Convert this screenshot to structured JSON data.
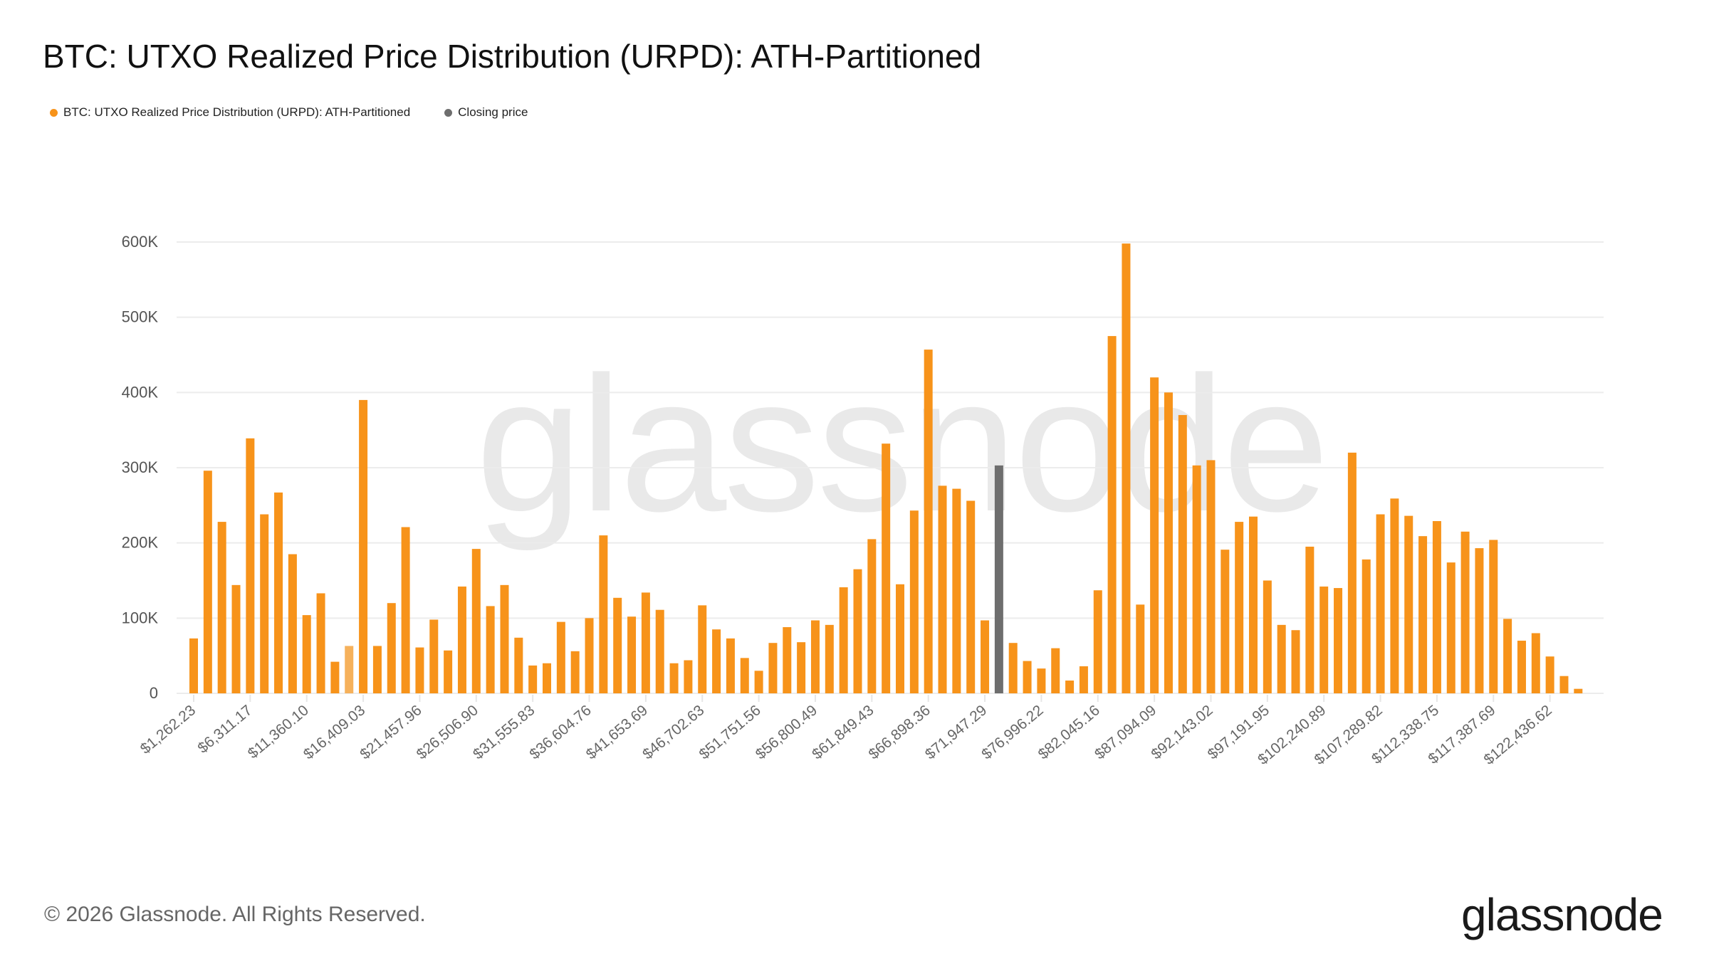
{
  "title": "BTC: UTXO Realized Price Distribution (URPD): ATH-Partitioned",
  "legend": [
    {
      "label": "BTC: UTXO Realized Price Distribution (URPD): ATH-Partitioned",
      "color": "#f7931a"
    },
    {
      "label": "Closing price",
      "color": "#6e6e6e"
    }
  ],
  "watermark": "glassnode",
  "footer": {
    "copyright": "© 2026 Glassnode. All Rights Reserved.",
    "logo": "glassnode"
  },
  "chart_data": {
    "type": "bar",
    "title": "BTC: UTXO Realized Price Distribution (URPD): ATH-Partitioned",
    "xlabel": "",
    "ylabel": "",
    "ylim": [
      0,
      600000
    ],
    "y_ticks": [
      0,
      100000,
      200000,
      300000,
      400000,
      500000,
      600000
    ],
    "y_tick_labels": [
      "0",
      "100K",
      "200K",
      "300K",
      "400K",
      "500K",
      "600K"
    ],
    "grid": true,
    "legend_position": "top-left",
    "x_tick_every": 4,
    "x_tick_labels": [
      "$1,262.23",
      "$6,311.17",
      "$11,360.10",
      "$16,409.03",
      "$21,457.96",
      "$26,506.90",
      "$31,555.83",
      "$36,604.76",
      "$41,653.69",
      "$46,702.63",
      "$51,751.56",
      "$56,800.49",
      "$61,849.43",
      "$66,898.36",
      "$71,947.29",
      "$76,996.22",
      "$82,045.16",
      "$87,094.09",
      "$92,143.02",
      "$97,191.95",
      "$102,240.89",
      "$107,289.82",
      "$112,338.75",
      "$117,387.69",
      "$122,436.62"
    ],
    "colors": {
      "default": "#f7931a",
      "highlighted": "#f6b15b",
      "closing_price": "#6e6e6e"
    },
    "closing_price_bin_index": 57,
    "highlighted_bin_index": 11,
    "series": [
      {
        "name": "BTC: UTXO Realized Price Distribution (URPD): ATH-Partitioned",
        "values": [
          73000,
          296000,
          228000,
          144000,
          339000,
          238000,
          267000,
          185000,
          104000,
          133000,
          42000,
          63000,
          390000,
          63000,
          120000,
          221000,
          61000,
          98000,
          57000,
          142000,
          192000,
          116000,
          144000,
          74000,
          37000,
          40000,
          95000,
          56000,
          100000,
          210000,
          127000,
          102000,
          134000,
          111000,
          40000,
          44000,
          117000,
          85000,
          73000,
          47000,
          30000,
          67000,
          88000,
          68000,
          97000,
          91000,
          141000,
          165000,
          205000,
          332000,
          145000,
          243000,
          457000,
          276000,
          272000,
          256000,
          97000,
          303000,
          67000,
          43000,
          33000,
          60000,
          17000,
          36000,
          137000,
          475000,
          598000,
          118000,
          420000,
          400000,
          370000,
          303000,
          310000,
          191000,
          228000,
          235000,
          150000,
          91000,
          84000,
          195000,
          142000,
          140000,
          320000,
          178000,
          238000,
          259000,
          236000,
          209000,
          229000,
          174000,
          215000,
          193000,
          204000,
          99000,
          70000,
          80000,
          49000,
          23000,
          6000
        ]
      }
    ]
  }
}
